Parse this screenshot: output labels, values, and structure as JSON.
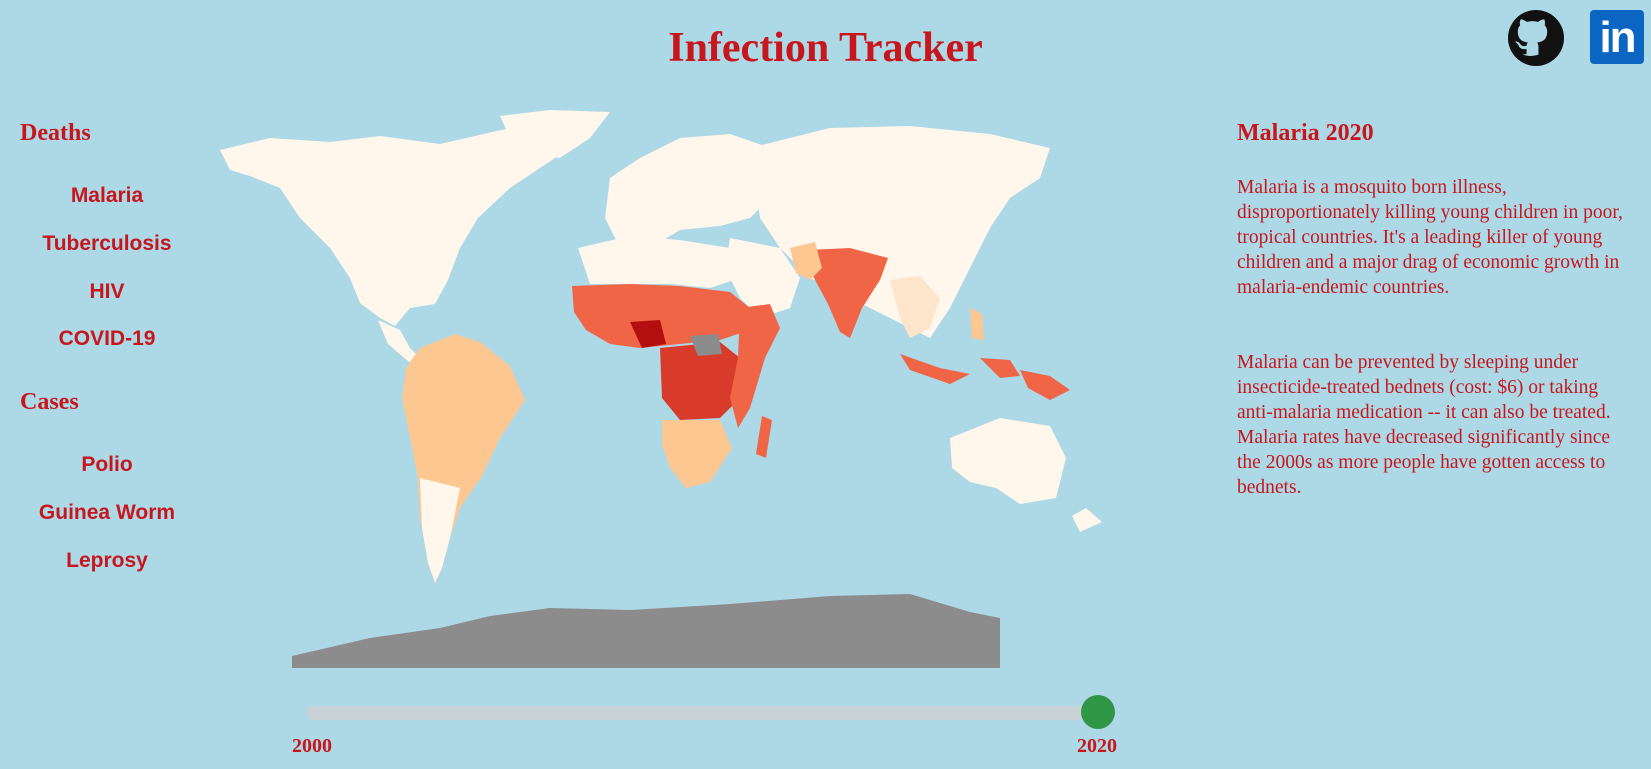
{
  "header": {
    "title": "Infection Tracker"
  },
  "social": {
    "github_icon": "github-icon",
    "linkedin_icon": "linkedin-icon",
    "linkedin_text": "in"
  },
  "sidebar": {
    "deaths_heading": "Deaths",
    "deaths_items": [
      "Malaria",
      "Tuberculosis",
      "HIV",
      "COVID-19"
    ],
    "cases_heading": "Cases",
    "cases_items": [
      "Polio",
      "Guinea Worm",
      "Leprosy"
    ]
  },
  "info": {
    "title": "Malaria 2020",
    "paragraph1": "Malaria is a mosquito born illness, disproportionately killing young children in poor, tropical countries. It's a leading killer of young children and a major drag of economic growth in malaria-endemic countries.",
    "paragraph2": "Malaria can be prevented by sleeping under insecticide-treated bednets (cost: $6) or taking anti-malaria medication -- it can also be treated. Malaria rates have decreased significantly since the 2000s as more people have gotten access to bednets."
  },
  "slider": {
    "min_label": "2000",
    "max_label": "2020",
    "min": 2000,
    "max": 2020,
    "value": 2020
  },
  "colors": {
    "background": "#add8e6",
    "accent": "#c8161d",
    "land_no_data": "#fff6ec",
    "unknown": "#8c8c8c",
    "scale": [
      "#fde5cc",
      "#fdc792",
      "#fca070",
      "#f06546",
      "#d93b2a",
      "#b30f0f"
    ],
    "slider_handle": "#2e9645"
  }
}
